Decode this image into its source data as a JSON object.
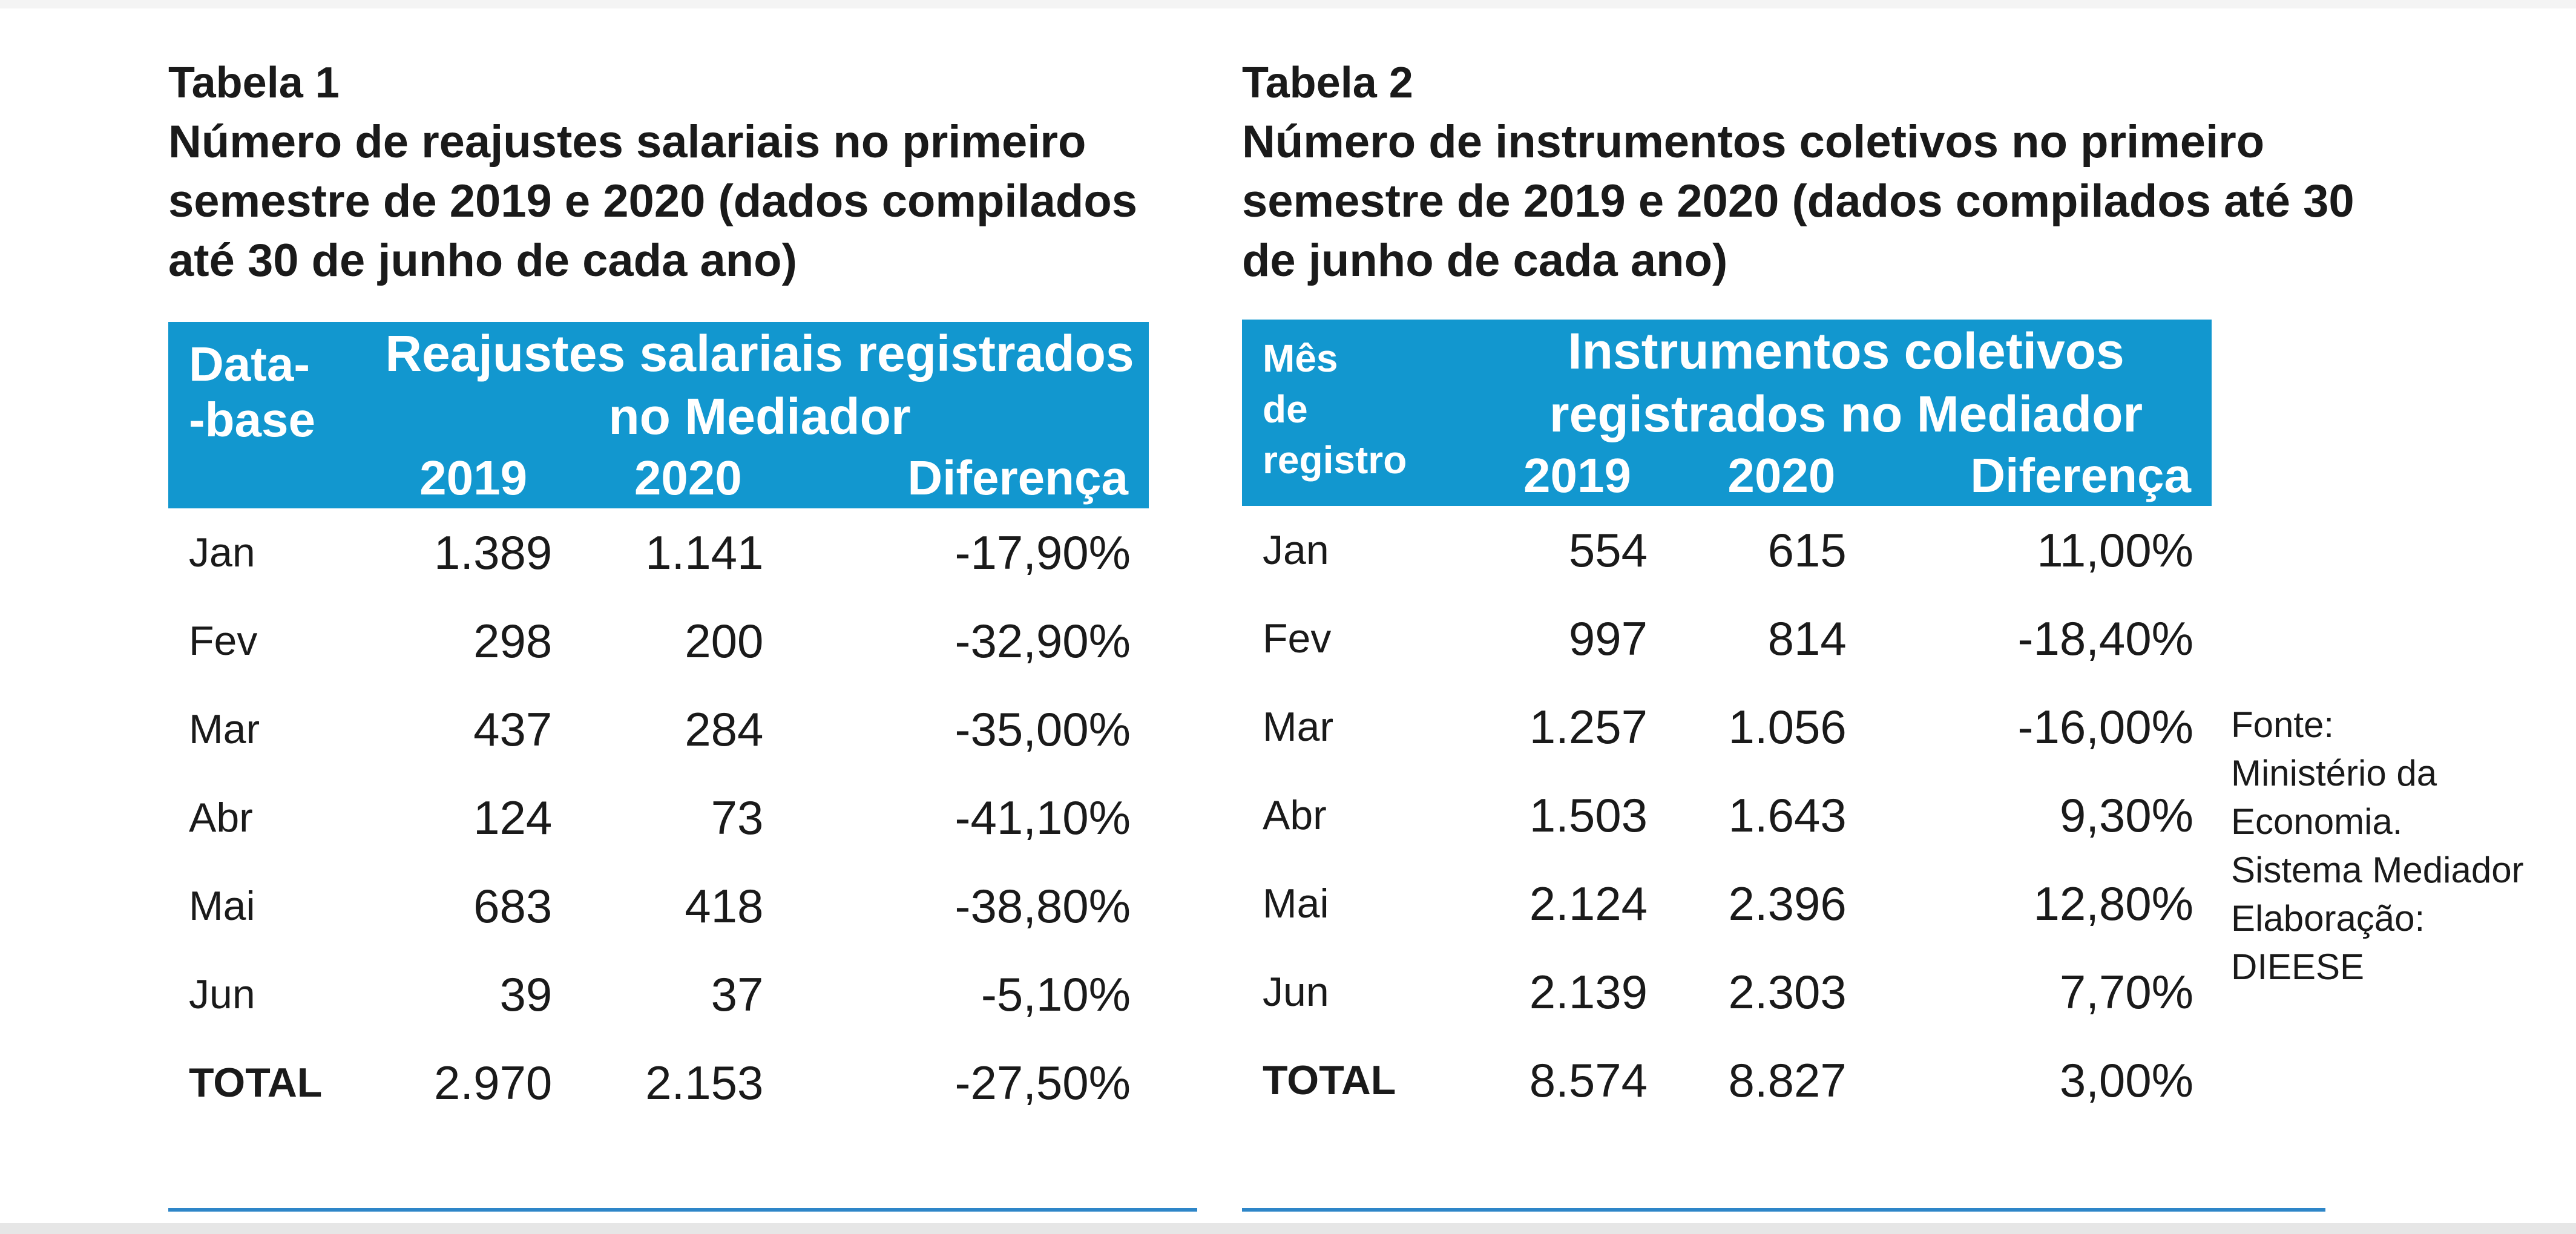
{
  "tables": [
    {
      "label": "Tabela 1",
      "title": "Número de reajustes salariais no primeiro semestre de 2019 e 2020 (dados compilados até 30 de junho de cada ano)",
      "corner_header": "Data-\n-base",
      "group_header": "Reajustes salariais registrados no Mediador",
      "year_headers": [
        "2019",
        "2020",
        "Diferença"
      ],
      "rows": [
        {
          "month": "Jan",
          "v2019": "1.389",
          "v2020": "1.141",
          "diff": "-17,90%"
        },
        {
          "month": "Fev",
          "v2019": "298",
          "v2020": "200",
          "diff": "-32,90%"
        },
        {
          "month": "Mar",
          "v2019": "437",
          "v2020": "284",
          "diff": "-35,00%"
        },
        {
          "month": "Abr",
          "v2019": "124",
          "v2020": "73",
          "diff": "-41,10%"
        },
        {
          "month": "Mai",
          "v2019": "683",
          "v2020": "418",
          "diff": "-38,80%"
        },
        {
          "month": "Jun",
          "v2019": "39",
          "v2020": "37",
          "diff": "-5,10%"
        },
        {
          "month": "TOTAL",
          "v2019": "2.970",
          "v2020": "2.153",
          "diff": "-27,50%"
        }
      ]
    },
    {
      "label": "Tabela 2",
      "title": "Número de instrumentos coletivos no primeiro semestre de 2019 e 2020 (dados compilados até 30 de junho de cada ano)",
      "corner_header": "Mês\nde\nregistro",
      "group_header": "Instrumentos coletivos registrados no Mediador",
      "year_headers": [
        "2019",
        "2020",
        "Diferença"
      ],
      "rows": [
        {
          "month": "Jan",
          "v2019": "554",
          "v2020": "615",
          "diff": "11,00%"
        },
        {
          "month": "Fev",
          "v2019": "997",
          "v2020": "814",
          "diff": "-18,40%"
        },
        {
          "month": "Mar",
          "v2019": "1.257",
          "v2020": "1.056",
          "diff": "-16,00%"
        },
        {
          "month": "Abr",
          "v2019": "1.503",
          "v2020": "1.643",
          "diff": "9,30%"
        },
        {
          "month": "Mai",
          "v2019": "2.124",
          "v2020": "2.396",
          "diff": "12,80%"
        },
        {
          "month": "Jun",
          "v2019": "2.139",
          "v2020": "2.303",
          "diff": "7,70%"
        },
        {
          "month": "TOTAL",
          "v2019": "8.574",
          "v2020": "8.827",
          "diff": "3,00%"
        }
      ]
    }
  ],
  "source_note": {
    "lines": [
      "Fonte:",
      "Ministério da",
      "Economia.",
      "Sistema Mediador",
      "Elaboração:",
      "DIEESE"
    ]
  },
  "colors": {
    "header_bg": "#1297cf",
    "rule": "#2e86c8",
    "text": "#1a1a1a"
  }
}
